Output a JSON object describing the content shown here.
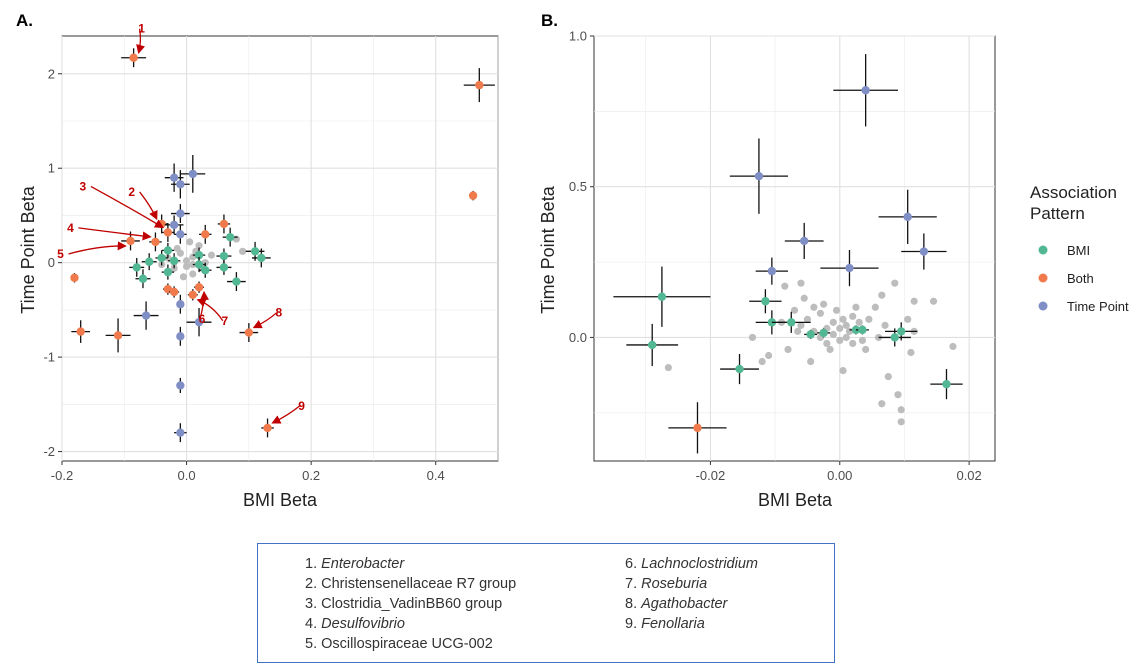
{
  "colors": {
    "BMI": "#52b893",
    "Both": "#f07a4c",
    "Time Point": "#7f8fc6",
    "background_taxa": "#bdbdbd",
    "annotation": "#c00000"
  },
  "legend": {
    "title": "Association Pattern",
    "items": [
      {
        "label": "BMI",
        "color": "#52b893"
      },
      {
        "label": "Both",
        "color": "#f07a4c"
      },
      {
        "label": "Time Point",
        "color": "#7f8fc6"
      }
    ]
  },
  "chart_data": [
    {
      "type": "scatter",
      "panel_label": "A.",
      "xlabel": "BMI Beta",
      "ylabel": "Time Point Beta",
      "xlim": [
        -0.2,
        0.5
      ],
      "ylim": [
        -2.1,
        2.4
      ],
      "xticks": [
        -0.2,
        0.0,
        0.2,
        0.4
      ],
      "xtick_labels": [
        "-0.2",
        "0.0",
        "0.2",
        "0.4"
      ],
      "yticks": [
        -2,
        -1,
        0,
        1,
        2
      ],
      "ytick_labels": [
        "-2",
        "-1",
        "0",
        "1",
        "2"
      ],
      "grid": true,
      "series": [
        {
          "name": "BMI",
          "points": [
            {
              "x": -0.08,
              "y": -0.05,
              "xerr": 0.012,
              "yerr": 0.1
            },
            {
              "x": -0.07,
              "y": -0.17,
              "xerr": 0.012,
              "yerr": 0.1
            },
            {
              "x": -0.06,
              "y": 0.01,
              "xerr": 0.012,
              "yerr": 0.09
            },
            {
              "x": -0.04,
              "y": 0.05,
              "xerr": 0.01,
              "yerr": 0.08
            },
            {
              "x": -0.03,
              "y": 0.13,
              "xerr": 0.01,
              "yerr": 0.08
            },
            {
              "x": -0.03,
              "y": -0.1,
              "xerr": 0.01,
              "yerr": 0.08
            },
            {
              "x": -0.02,
              "y": 0.02,
              "xerr": 0.01,
              "yerr": 0.08
            },
            {
              "x": 0.02,
              "y": 0.08,
              "xerr": 0.01,
              "yerr": 0.08
            },
            {
              "x": 0.02,
              "y": -0.02,
              "xerr": 0.01,
              "yerr": 0.08
            },
            {
              "x": 0.03,
              "y": -0.08,
              "xerr": 0.01,
              "yerr": 0.08
            },
            {
              "x": 0.06,
              "y": 0.07,
              "xerr": 0.012,
              "yerr": 0.08
            },
            {
              "x": 0.06,
              "y": -0.05,
              "xerr": 0.012,
              "yerr": 0.08
            },
            {
              "x": 0.07,
              "y": 0.27,
              "xerr": 0.012,
              "yerr": 0.1
            },
            {
              "x": 0.08,
              "y": -0.2,
              "xerr": 0.015,
              "yerr": 0.1
            },
            {
              "x": 0.11,
              "y": 0.12,
              "xerr": 0.015,
              "yerr": 0.1
            },
            {
              "x": 0.12,
              "y": 0.05,
              "xerr": 0.015,
              "yerr": 0.1
            }
          ]
        },
        {
          "name": "Both",
          "points": [
            {
              "x": -0.085,
              "y": 2.17,
              "xerr": 0.02,
              "yerr": 0.1
            },
            {
              "x": 0.47,
              "y": 1.88,
              "xerr": 0.025,
              "yerr": 0.18
            },
            {
              "x": 0.46,
              "y": 0.71,
              "xerr": 0.005,
              "yerr": 0.05
            },
            {
              "x": -0.04,
              "y": 0.41,
              "xerr": 0.01,
              "yerr": 0.1
            },
            {
              "x": -0.03,
              "y": 0.32,
              "xerr": 0.01,
              "yerr": 0.1
            },
            {
              "x": -0.05,
              "y": 0.22,
              "xerr": 0.01,
              "yerr": 0.1
            },
            {
              "x": -0.09,
              "y": 0.23,
              "xerr": 0.015,
              "yerr": 0.1
            },
            {
              "x": 0.06,
              "y": 0.41,
              "xerr": 0.01,
              "yerr": 0.1
            },
            {
              "x": 0.03,
              "y": 0.3,
              "xerr": 0.01,
              "yerr": 0.1
            },
            {
              "x": -0.18,
              "y": -0.16,
              "xerr": 0.005,
              "yerr": 0.05
            },
            {
              "x": -0.17,
              "y": -0.73,
              "xerr": 0.015,
              "yerr": 0.12
            },
            {
              "x": -0.11,
              "y": -0.77,
              "xerr": 0.02,
              "yerr": 0.18
            },
            {
              "x": -0.03,
              "y": -0.28,
              "xerr": 0.008,
              "yerr": 0.06
            },
            {
              "x": -0.02,
              "y": -0.31,
              "xerr": 0.008,
              "yerr": 0.06
            },
            {
              "x": 0.01,
              "y": -0.34,
              "xerr": 0.008,
              "yerr": 0.06
            },
            {
              "x": 0.02,
              "y": -0.26,
              "xerr": 0.008,
              "yerr": 0.06
            },
            {
              "x": 0.1,
              "y": -0.74,
              "xerr": 0.015,
              "yerr": 0.1
            },
            {
              "x": 0.13,
              "y": -1.75,
              "xerr": 0.01,
              "yerr": 0.1
            }
          ]
        },
        {
          "name": "Time Point",
          "points": [
            {
              "x": -0.02,
              "y": 0.9,
              "xerr": 0.015,
              "yerr": 0.15
            },
            {
              "x": -0.01,
              "y": 0.83,
              "xerr": 0.015,
              "yerr": 0.15
            },
            {
              "x": 0.01,
              "y": 0.94,
              "xerr": 0.02,
              "yerr": 0.2
            },
            {
              "x": -0.01,
              "y": 0.52,
              "xerr": 0.015,
              "yerr": 0.1
            },
            {
              "x": -0.02,
              "y": 0.4,
              "xerr": 0.015,
              "yerr": 0.1
            },
            {
              "x": -0.01,
              "y": 0.3,
              "xerr": 0.01,
              "yerr": 0.1
            },
            {
              "x": -0.065,
              "y": -0.56,
              "xerr": 0.02,
              "yerr": 0.15
            },
            {
              "x": -0.01,
              "y": -0.44,
              "xerr": 0.005,
              "yerr": 0.1
            },
            {
              "x": -0.01,
              "y": -0.78,
              "xerr": 0.005,
              "yerr": 0.1
            },
            {
              "x": 0.02,
              "y": -0.63,
              "xerr": 0.02,
              "yerr": 0.15
            },
            {
              "x": -0.01,
              "y": -1.3,
              "xerr": 0.005,
              "yerr": 0.08
            },
            {
              "x": -0.01,
              "y": -1.8,
              "xerr": 0.01,
              "yerr": 0.1
            }
          ]
        }
      ],
      "background_taxa": [
        {
          "x": -0.03,
          "y": 0.05
        },
        {
          "x": -0.02,
          "y": 0.0
        },
        {
          "x": -0.02,
          "y": -0.06
        },
        {
          "x": -0.01,
          "y": 0.1
        },
        {
          "x": 0.0,
          "y": 0.02
        },
        {
          "x": 0.0,
          "y": -0.04
        },
        {
          "x": 0.01,
          "y": 0.06
        },
        {
          "x": 0.01,
          "y": -0.02
        },
        {
          "x": 0.01,
          "y": -0.12
        },
        {
          "x": 0.02,
          "y": 0.18
        },
        {
          "x": 0.03,
          "y": 0.0
        },
        {
          "x": -0.005,
          "y": -0.15
        },
        {
          "x": 0.005,
          "y": 0.22
        },
        {
          "x": 0.04,
          "y": 0.08
        },
        {
          "x": 0.08,
          "y": 0.25
        },
        {
          "x": 0.09,
          "y": 0.12
        },
        {
          "x": -0.04,
          "y": -0.02
        },
        {
          "x": 0.015,
          "y": 0.12
        },
        {
          "x": -0.015,
          "y": 0.15
        },
        {
          "x": 0.025,
          "y": -0.06
        }
      ],
      "annotations": [
        {
          "label": "1",
          "x": -0.085,
          "y": 2.17
        },
        {
          "label": "2",
          "x": -0.04,
          "y": 0.41
        },
        {
          "label": "3",
          "x": -0.03,
          "y": 0.32
        },
        {
          "label": "4",
          "x": -0.05,
          "y": 0.22
        },
        {
          "label": "5",
          "x": -0.09,
          "y": 0.23
        },
        {
          "label": "6",
          "x": 0.02,
          "y": -0.26
        },
        {
          "label": "7",
          "x": 0.01,
          "y": -0.34
        },
        {
          "label": "8",
          "x": 0.1,
          "y": -0.74
        },
        {
          "label": "9",
          "x": 0.13,
          "y": -1.75
        }
      ]
    },
    {
      "type": "scatter",
      "panel_label": "B.",
      "xlabel": "BMI Beta",
      "ylabel": "Time Point Beta",
      "xlim": [
        -0.038,
        0.024
      ],
      "ylim": [
        -0.41,
        1.0
      ],
      "xticks": [
        -0.02,
        0.0,
        0.02
      ],
      "xtick_labels": [
        "-0.02",
        "0.00",
        "0.02"
      ],
      "yticks": [
        0.0,
        0.5,
        1.0
      ],
      "ytick_labels": [
        "0.0",
        "0.5",
        "1.0"
      ],
      "grid": true,
      "series": [
        {
          "name": "BMI",
          "points": [
            {
              "x": -0.0275,
              "y": 0.135,
              "xerr": 0.0075,
              "yerr": 0.1
            },
            {
              "x": -0.029,
              "y": -0.025,
              "xerr": 0.004,
              "yerr": 0.07
            },
            {
              "x": -0.0115,
              "y": 0.12,
              "xerr": 0.0025,
              "yerr": 0.04
            },
            {
              "x": -0.0105,
              "y": 0.05,
              "xerr": 0.0025,
              "yerr": 0.04
            },
            {
              "x": -0.0075,
              "y": 0.05,
              "xerr": 0.003,
              "yerr": 0.035
            },
            {
              "x": -0.0155,
              "y": -0.105,
              "xerr": 0.003,
              "yerr": 0.05
            },
            {
              "x": -0.0045,
              "y": 0.01,
              "xerr": 0.001,
              "yerr": 0.015
            },
            {
              "x": -0.0025,
              "y": 0.015,
              "xerr": 0.001,
              "yerr": 0.015
            },
            {
              "x": 0.0025,
              "y": 0.025,
              "xerr": 0.001,
              "yerr": 0.015
            },
            {
              "x": 0.0035,
              "y": 0.025,
              "xerr": 0.001,
              "yerr": 0.015
            },
            {
              "x": 0.0085,
              "y": 0.0,
              "xerr": 0.0025,
              "yerr": 0.03
            },
            {
              "x": 0.0095,
              "y": 0.02,
              "xerr": 0.0025,
              "yerr": 0.03
            },
            {
              "x": 0.0165,
              "y": -0.155,
              "xerr": 0.0025,
              "yerr": 0.05
            }
          ]
        },
        {
          "name": "Both",
          "points": [
            {
              "x": -0.022,
              "y": -0.3,
              "xerr": 0.0045,
              "yerr": 0.085
            }
          ]
        },
        {
          "name": "Time Point",
          "points": [
            {
              "x": 0.004,
              "y": 0.82,
              "xerr": 0.005,
              "yerr": 0.12
            },
            {
              "x": -0.0125,
              "y": 0.535,
              "xerr": 0.0045,
              "yerr": 0.125
            },
            {
              "x": 0.0105,
              "y": 0.4,
              "xerr": 0.0045,
              "yerr": 0.09
            },
            {
              "x": -0.0055,
              "y": 0.32,
              "xerr": 0.003,
              "yerr": 0.06
            },
            {
              "x": 0.013,
              "y": 0.285,
              "xerr": 0.0035,
              "yerr": 0.06
            },
            {
              "x": 0.0015,
              "y": 0.23,
              "xerr": 0.0045,
              "yerr": 0.06
            },
            {
              "x": -0.0105,
              "y": 0.22,
              "xerr": 0.0025,
              "yerr": 0.045
            }
          ]
        }
      ],
      "background_taxa": [
        {
          "x": -0.006,
          "y": 0.04
        },
        {
          "x": -0.005,
          "y": 0.06
        },
        {
          "x": -0.004,
          "y": 0.02
        },
        {
          "x": -0.003,
          "y": 0.08
        },
        {
          "x": -0.003,
          "y": 0.0
        },
        {
          "x": -0.002,
          "y": 0.03
        },
        {
          "x": -0.002,
          "y": -0.02
        },
        {
          "x": -0.001,
          "y": 0.05
        },
        {
          "x": -0.001,
          "y": 0.01
        },
        {
          "x": 0.0,
          "y": 0.03
        },
        {
          "x": 0.0,
          "y": -0.01
        },
        {
          "x": 0.0005,
          "y": 0.06
        },
        {
          "x": 0.001,
          "y": 0.0
        },
        {
          "x": 0.001,
          "y": 0.04
        },
        {
          "x": 0.0015,
          "y": 0.02
        },
        {
          "x": 0.002,
          "y": -0.02
        },
        {
          "x": 0.002,
          "y": 0.07
        },
        {
          "x": -0.0015,
          "y": -0.04
        },
        {
          "x": -0.0005,
          "y": 0.09
        },
        {
          "x": -0.004,
          "y": 0.1
        },
        {
          "x": -0.0065,
          "y": 0.02
        },
        {
          "x": -0.007,
          "y": 0.09
        },
        {
          "x": 0.003,
          "y": 0.05
        },
        {
          "x": -0.0025,
          "y": 0.11
        },
        {
          "x": -0.009,
          "y": 0.05
        },
        {
          "x": -0.011,
          "y": -0.06
        },
        {
          "x": -0.012,
          "y": -0.08
        },
        {
          "x": -0.0135,
          "y": 0.0
        },
        {
          "x": -0.008,
          "y": -0.04
        },
        {
          "x": -0.0055,
          "y": 0.13
        },
        {
          "x": -0.006,
          "y": 0.18
        },
        {
          "x": -0.0045,
          "y": -0.08
        },
        {
          "x": -0.0265,
          "y": -0.1
        },
        {
          "x": -0.0085,
          "y": 0.17
        },
        {
          "x": 0.0005,
          "y": -0.11
        },
        {
          "x": 0.004,
          "y": -0.04
        },
        {
          "x": 0.0055,
          "y": 0.1
        },
        {
          "x": 0.0065,
          "y": 0.14
        },
        {
          "x": 0.0085,
          "y": 0.18
        },
        {
          "x": 0.0105,
          "y": 0.06
        },
        {
          "x": 0.0115,
          "y": 0.02
        },
        {
          "x": 0.011,
          "y": -0.05
        },
        {
          "x": 0.0075,
          "y": -0.13
        },
        {
          "x": 0.0065,
          "y": -0.22
        },
        {
          "x": 0.009,
          "y": -0.19
        },
        {
          "x": 0.0095,
          "y": -0.24
        },
        {
          "x": 0.0095,
          "y": -0.28
        },
        {
          "x": 0.0115,
          "y": 0.12
        },
        {
          "x": 0.0145,
          "y": 0.12
        },
        {
          "x": 0.0175,
          "y": -0.03
        },
        {
          "x": 0.0045,
          "y": 0.06
        },
        {
          "x": 0.006,
          "y": 0.0
        },
        {
          "x": 0.007,
          "y": 0.04
        },
        {
          "x": 0.0025,
          "y": 0.1
        },
        {
          "x": 0.0035,
          "y": -0.01
        }
      ]
    }
  ],
  "key": {
    "items": [
      {
        "num": "1.",
        "name": "Enterobacter",
        "italic": true
      },
      {
        "num": "2.",
        "name": "Christensenellaceae R7 group",
        "italic": false
      },
      {
        "num": "3.",
        "name": "Clostridia_VadinBB60 group",
        "italic": false
      },
      {
        "num": "4.",
        "name": "Desulfovibrio",
        "italic": true
      },
      {
        "num": "5.",
        "name": "Oscillospiraceae UCG-002",
        "italic": false
      },
      {
        "num": "6.",
        "name": "Lachnoclostridium",
        "italic": true
      },
      {
        "num": "7.",
        "name": "Roseburia",
        "italic": true
      },
      {
        "num": "8.",
        "name": "Agathobacter",
        "italic": true
      },
      {
        "num": "9.",
        "name": "Fenollaria",
        "italic": true
      }
    ]
  }
}
